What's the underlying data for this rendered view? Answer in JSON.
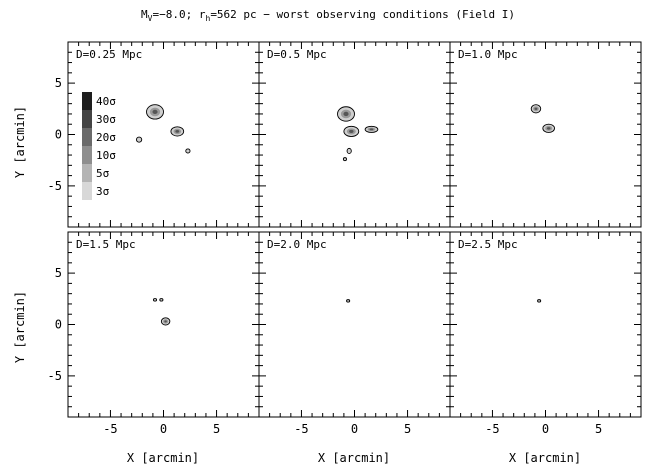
{
  "chart_data": {
    "type": "heatmap",
    "title_parts": {
      "m_prefix": "M",
      "m_sub": "V",
      "m_value": "=−8.0; r",
      "r_sub": "h",
      "rest": "=562 pc − worst observing conditions (Field I)"
    },
    "xlabel": "X [arcmin]",
    "ylabel": "Y [arcmin]",
    "xlim": [
      -9,
      9
    ],
    "ylim": [
      -9,
      9
    ],
    "xticks": [
      -5,
      0,
      5
    ],
    "yticks": [
      -5,
      0,
      5
    ],
    "legend": {
      "placement": "left",
      "entries": [
        {
          "label": "40σ",
          "color": "#1e1e1e"
        },
        {
          "label": "30σ",
          "color": "#444444"
        },
        {
          "label": "20σ",
          "color": "#6a6a6a"
        },
        {
          "label": "10σ",
          "color": "#8e8e8e"
        },
        {
          "label": "5σ",
          "color": "#b4b4b4"
        },
        {
          "label": "3σ",
          "color": "#d8d8d8"
        }
      ]
    },
    "panels": [
      {
        "label": "D=0.25 Mpc",
        "blobs": [
          {
            "x": -0.8,
            "y": 2.2,
            "rx": 0.8,
            "ry": 0.7
          },
          {
            "x": 1.3,
            "y": 0.3,
            "rx": 0.6,
            "ry": 0.45
          },
          {
            "x": -2.3,
            "y": -0.5,
            "rx": 0.25,
            "ry": 0.25
          },
          {
            "x": 2.3,
            "y": -1.6,
            "rx": 0.2,
            "ry": 0.2
          }
        ]
      },
      {
        "label": "D=0.5 Mpc",
        "blobs": [
          {
            "x": -0.8,
            "y": 2.0,
            "rx": 0.8,
            "ry": 0.7
          },
          {
            "x": -0.3,
            "y": 0.3,
            "rx": 0.7,
            "ry": 0.5
          },
          {
            "x": 1.6,
            "y": 0.5,
            "rx": 0.6,
            "ry": 0.3
          },
          {
            "x": -0.5,
            "y": -1.6,
            "rx": 0.2,
            "ry": 0.25
          },
          {
            "x": -0.9,
            "y": -2.4,
            "rx": 0.15,
            "ry": 0.15
          }
        ]
      },
      {
        "label": "D=1.0 Mpc",
        "blobs": [
          {
            "x": -0.9,
            "y": 2.5,
            "rx": 0.45,
            "ry": 0.4
          },
          {
            "x": 0.3,
            "y": 0.6,
            "rx": 0.55,
            "ry": 0.4
          }
        ]
      },
      {
        "label": "D=1.5 Mpc",
        "blobs": [
          {
            "x": -0.8,
            "y": 2.4,
            "rx": 0.15,
            "ry": 0.12
          },
          {
            "x": -0.2,
            "y": 2.4,
            "rx": 0.15,
            "ry": 0.12
          },
          {
            "x": 0.2,
            "y": 0.3,
            "rx": 0.4,
            "ry": 0.35
          }
        ]
      },
      {
        "label": "D=2.0 Mpc",
        "blobs": [
          {
            "x": -0.6,
            "y": 2.3,
            "rx": 0.15,
            "ry": 0.12
          }
        ]
      },
      {
        "label": "D=2.5 Mpc",
        "blobs": [
          {
            "x": -0.6,
            "y": 2.3,
            "rx": 0.15,
            "ry": 0.12
          }
        ]
      }
    ]
  }
}
